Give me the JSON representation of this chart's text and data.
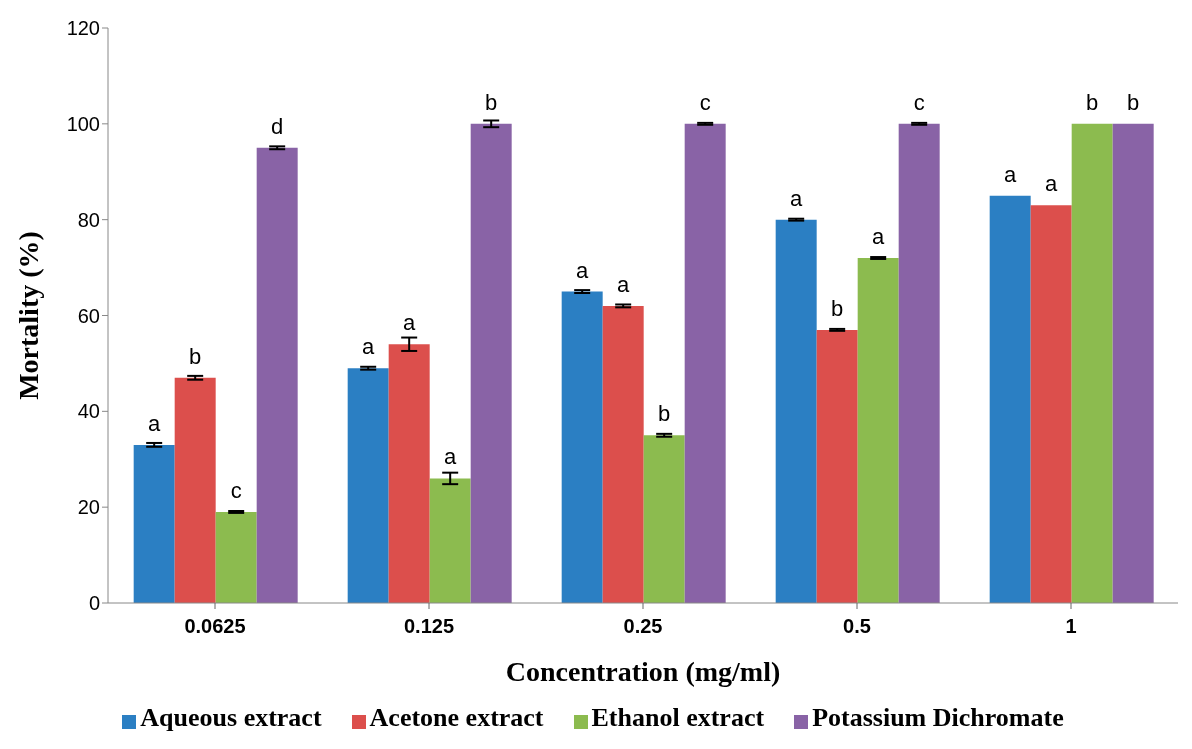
{
  "chart_data": {
    "type": "bar",
    "xlabel": "Concentration (mg/ml)",
    "ylabel": "Mortality (%)",
    "categories": [
      "0.0625",
      "0.125",
      "0.25",
      "0.5",
      "1"
    ],
    "series": [
      {
        "name": "Aqueous extract",
        "color": "#2b7fc3",
        "values": [
          33,
          49,
          65,
          80,
          85
        ],
        "errors": [
          0.4,
          0.3,
          0.3,
          0.2,
          null
        ],
        "value_labels": [
          "a",
          "a",
          "a",
          "a",
          "a"
        ]
      },
      {
        "name": "Acetone extract",
        "color": "#dc4f4c",
        "values": [
          47,
          54,
          62,
          57,
          83
        ],
        "errors": [
          0.4,
          1.4,
          0.3,
          0.2,
          null
        ],
        "value_labels": [
          "b",
          "a",
          "a",
          "b",
          "a"
        ]
      },
      {
        "name": "Ethanol extract",
        "color": "#8cbb4f",
        "values": [
          19,
          26,
          35,
          72,
          100
        ],
        "errors": [
          0.2,
          1.2,
          0.3,
          0.2,
          null
        ],
        "value_labels": [
          "c",
          "a",
          "b",
          "a",
          "b"
        ]
      },
      {
        "name": "Potassium Dichromate",
        "color": "#8963a6",
        "values": [
          95,
          100,
          100,
          100,
          100
        ],
        "errors": [
          0.3,
          0.7,
          0.2,
          0.2,
          null
        ],
        "value_labels": [
          "d",
          "b",
          "c",
          "c",
          "b"
        ]
      }
    ],
    "ylim": [
      0,
      120
    ],
    "yticks": [
      0,
      20,
      40,
      60,
      80,
      100,
      120
    ],
    "grid": false,
    "legend": "bottom"
  }
}
